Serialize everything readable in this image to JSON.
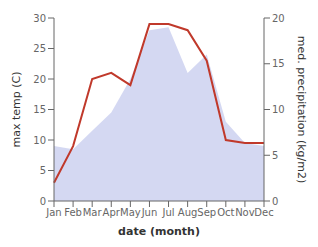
{
  "chart_data": {
    "type": "line",
    "xlabel": "date (month)",
    "ylabel": "max temp (C)",
    "y2label": "med. precipitation (kg/m2)",
    "categories": [
      "Jan",
      "Feb",
      "Mar",
      "Apr",
      "May",
      "Jun",
      "Jul",
      "Aug",
      "Sep",
      "Oct",
      "Nov",
      "Dec"
    ],
    "series": [
      {
        "type": "area",
        "color": "#b0b8e8",
        "values": [
          9.0,
          8.5,
          11.5,
          14.5,
          20.0,
          28.0,
          28.5,
          21.0,
          24.0,
          13.0,
          9.5,
          9.0
        ]
      },
      {
        "type": "line",
        "color": "#c0392b",
        "values": [
          3.0,
          9.0,
          20.0,
          21.0,
          19.0,
          29.0,
          29.0,
          28.0,
          23.0,
          10.0,
          9.5,
          9.5
        ]
      }
    ],
    "ylim": [
      0,
      30
    ],
    "yticks": [
      0,
      5,
      10,
      15,
      20,
      25,
      30
    ],
    "y2lim": [
      0,
      20
    ],
    "y2ticks": [
      0,
      5,
      10,
      15,
      20
    ],
    "grid": false
  }
}
